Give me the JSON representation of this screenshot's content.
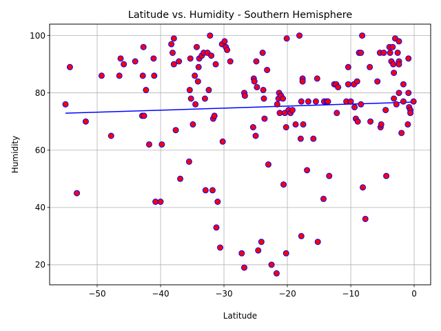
{
  "chart_data": {
    "type": "scatter",
    "title": "Latitude vs. Humidity - Southern Hemisphere",
    "xlabel": "Latitude",
    "ylabel": "Humidity",
    "xlim": [
      -57.5,
      2.6
    ],
    "ylim": [
      13,
      104
    ],
    "xticks": [
      -50,
      -40,
      -30,
      -20,
      -10,
      0
    ],
    "xtick_labels": [
      "−50",
      "−40",
      "−30",
      "−20",
      "−10",
      "0"
    ],
    "yticks": [
      20,
      40,
      60,
      80,
      100
    ],
    "yticks_labels": [
      "20",
      "40",
      "60",
      "80",
      "100"
    ],
    "grid": true,
    "marker_fill": "#ff0000",
    "marker_edge": "#0000ff",
    "regression_color": "#0000ff",
    "regression": {
      "x": [
        -55,
        0
      ],
      "y": [
        72.9,
        76.8
      ]
    },
    "points": [
      [
        -55,
        76
      ],
      [
        -54.3,
        89
      ],
      [
        -53.2,
        45
      ],
      [
        -51.8,
        70
      ],
      [
        -49.3,
        86
      ],
      [
        -47.8,
        65
      ],
      [
        -46.5,
        86
      ],
      [
        -46.3,
        92
      ],
      [
        -45.8,
        90
      ],
      [
        -44,
        91
      ],
      [
        -42.9,
        72
      ],
      [
        -42.7,
        96
      ],
      [
        -42.6,
        72
      ],
      [
        -42.8,
        86
      ],
      [
        -42.3,
        81
      ],
      [
        -41.8,
        62
      ],
      [
        -41.1,
        92
      ],
      [
        -41,
        86
      ],
      [
        -40.8,
        42
      ],
      [
        -40,
        42
      ],
      [
        -39.8,
        62
      ],
      [
        -38.3,
        97
      ],
      [
        -38.1,
        94
      ],
      [
        -37.9,
        99
      ],
      [
        -37.9,
        90
      ],
      [
        -37.6,
        67
      ],
      [
        -37.1,
        91
      ],
      [
        -36.9,
        50
      ],
      [
        -35.5,
        56
      ],
      [
        -35.4,
        81
      ],
      [
        -35.3,
        92
      ],
      [
        -35.2,
        78
      ],
      [
        -34.9,
        69
      ],
      [
        -34.6,
        86
      ],
      [
        -34.5,
        76
      ],
      [
        -34.3,
        96
      ],
      [
        -34.1,
        84
      ],
      [
        -34,
        89
      ],
      [
        -33.9,
        92
      ],
      [
        -33.5,
        93
      ],
      [
        -33.2,
        94
      ],
      [
        -33,
        78
      ],
      [
        -32.9,
        46
      ],
      [
        -32.6,
        94
      ],
      [
        -32.4,
        81
      ],
      [
        -32.2,
        100
      ],
      [
        -32,
        93
      ],
      [
        -31.8,
        46
      ],
      [
        -31.7,
        71
      ],
      [
        -31.5,
        72
      ],
      [
        -31.3,
        90
      ],
      [
        -31.2,
        33
      ],
      [
        -31,
        42
      ],
      [
        -30.6,
        26
      ],
      [
        -30.3,
        97
      ],
      [
        -30.2,
        63
      ],
      [
        -29.9,
        98
      ],
      [
        -29.7,
        96
      ],
      [
        -29.5,
        95
      ],
      [
        -29,
        91
      ],
      [
        -27.2,
        24
      ],
      [
        -26.8,
        19
      ],
      [
        -26.8,
        80
      ],
      [
        -26.7,
        79
      ],
      [
        -25.4,
        68
      ],
      [
        -25.3,
        85
      ],
      [
        -25.2,
        84
      ],
      [
        -25,
        65
      ],
      [
        -24.9,
        91
      ],
      [
        -24.8,
        82
      ],
      [
        -24.6,
        25
      ],
      [
        -24.1,
        28
      ],
      [
        -23.9,
        94
      ],
      [
        -23.8,
        81
      ],
      [
        -23.7,
        78
      ],
      [
        -23.6,
        71
      ],
      [
        -23.2,
        88
      ],
      [
        -23,
        55
      ],
      [
        -22.5,
        20
      ],
      [
        -21.7,
        17
      ],
      [
        -21.6,
        76
      ],
      [
        -21.4,
        78
      ],
      [
        -21.3,
        80
      ],
      [
        -21.2,
        73
      ],
      [
        -21,
        79
      ],
      [
        -20.7,
        78
      ],
      [
        -20.6,
        48
      ],
      [
        -20.4,
        73
      ],
      [
        -20.2,
        24
      ],
      [
        -20.2,
        68
      ],
      [
        -20.1,
        99
      ],
      [
        -19.8,
        74
      ],
      [
        -19.5,
        73
      ],
      [
        -19.2,
        74
      ],
      [
        -18.7,
        69
      ],
      [
        -18.1,
        100
      ],
      [
        -17.9,
        64
      ],
      [
        -17.8,
        30
      ],
      [
        -17.8,
        77
      ],
      [
        -17.6,
        85
      ],
      [
        -17.6,
        84
      ],
      [
        -17.5,
        69
      ],
      [
        -16.9,
        53
      ],
      [
        -16.7,
        77
      ],
      [
        -15.9,
        64
      ],
      [
        -15.5,
        77
      ],
      [
        -15.3,
        85
      ],
      [
        -15.2,
        28
      ],
      [
        -14.3,
        43
      ],
      [
        -14.2,
        77
      ],
      [
        -13.8,
        77
      ],
      [
        -13.6,
        77
      ],
      [
        -13.4,
        51
      ],
      [
        -12.6,
        83
      ],
      [
        -12.3,
        83
      ],
      [
        -12.2,
        73
      ],
      [
        -12,
        82
      ],
      [
        -10.7,
        77
      ],
      [
        -10.4,
        89
      ],
      [
        -10.4,
        83
      ],
      [
        -10,
        77
      ],
      [
        -9.5,
        83
      ],
      [
        -9.4,
        75
      ],
      [
        -9.2,
        71
      ],
      [
        -9,
        84
      ],
      [
        -8.9,
        70
      ],
      [
        -8.7,
        94
      ],
      [
        -8.4,
        94
      ],
      [
        -8.4,
        76
      ],
      [
        -8.2,
        100
      ],
      [
        -8.1,
        47
      ],
      [
        -7.7,
        36
      ],
      [
        -7,
        89
      ],
      [
        -6.9,
        70
      ],
      [
        -5.8,
        84
      ],
      [
        -5.4,
        94
      ],
      [
        -5.3,
        68
      ],
      [
        -5.2,
        69
      ],
      [
        -4.8,
        94
      ],
      [
        -4.5,
        74
      ],
      [
        -4.4,
        51
      ],
      [
        -3.9,
        96
      ],
      [
        -3.8,
        94
      ],
      [
        -3.6,
        91
      ],
      [
        -3.4,
        96
      ],
      [
        -3.3,
        90
      ],
      [
        -3.2,
        87
      ],
      [
        -3.2,
        78
      ],
      [
        -3,
        99
      ],
      [
        -2.8,
        76
      ],
      [
        -2.6,
        94
      ],
      [
        -2.4,
        98
      ],
      [
        -2.4,
        91
      ],
      [
        -2.4,
        80
      ],
      [
        -2.4,
        90
      ],
      [
        -2,
        66
      ],
      [
        -1.7,
        83
      ],
      [
        -1.7,
        77
      ],
      [
        -1,
        69
      ],
      [
        -0.9,
        80
      ],
      [
        -0.9,
        92
      ],
      [
        -0.8,
        75
      ],
      [
        -0.6,
        74
      ],
      [
        -0.6,
        73
      ],
      [
        -0.1,
        77
      ]
    ]
  }
}
